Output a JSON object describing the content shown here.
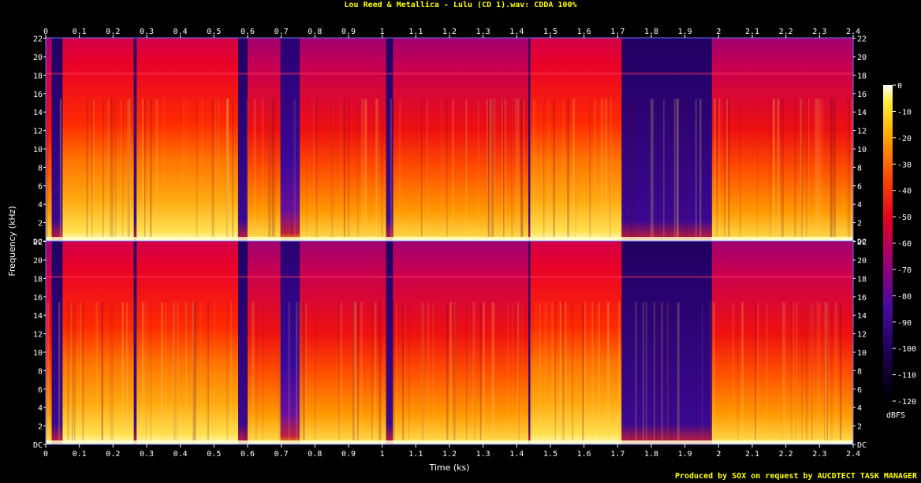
{
  "title": "Lou Reed & Metallica - Lulu (CD 1).wav: CDDA 100%",
  "footer": "Produced by SOX on request by AUCDTECT TASK MANAGER",
  "chart_data": {
    "type": "heatmap",
    "title": "Lou Reed & Metallica - Lulu (CD 1).wav: CDDA 100%",
    "xlabel": "Time (ks)",
    "ylabel": "Frequency (kHz)",
    "x_ticks": [
      "0",
      "0.1",
      "0.2",
      "0.3",
      "0.4",
      "0.5",
      "0.6",
      "0.7",
      "0.8",
      "0.9",
      "1",
      "1.1",
      "1.2",
      "1.3",
      "1.4",
      "1.5",
      "1.6",
      "1.7",
      "1.8",
      "1.9",
      "2",
      "2.1",
      "2.2",
      "2.3",
      "2.4"
    ],
    "x_tick_values": [
      0,
      0.1,
      0.2,
      0.3,
      0.4,
      0.5,
      0.6,
      0.7,
      0.8,
      0.9,
      1.0,
      1.1,
      1.2,
      1.3,
      1.4,
      1.5,
      1.6,
      1.7,
      1.8,
      1.9,
      2.0,
      2.1,
      2.2,
      2.3,
      2.4
    ],
    "xlim": [
      0,
      2.4
    ],
    "y_ticks": [
      "DC",
      "2",
      "4",
      "6",
      "8",
      "10",
      "12",
      "14",
      "16",
      "18",
      "20",
      "22"
    ],
    "y_tick_values": [
      0,
      2,
      4,
      6,
      8,
      10,
      12,
      14,
      16,
      18,
      20,
      22
    ],
    "ylim": [
      0,
      22.05
    ],
    "channels": 2,
    "colorbar": {
      "label": "dBFS",
      "ticks": [
        "0",
        "-10",
        "-20",
        "-30",
        "-40",
        "-50",
        "-60",
        "-70",
        "-80",
        "-90",
        "-100",
        "-110",
        "-120"
      ],
      "tick_values": [
        0,
        -10,
        -20,
        -30,
        -40,
        -50,
        -60,
        -70,
        -80,
        -90,
        -100,
        -110,
        -120
      ],
      "range": [
        -120,
        0
      ]
    },
    "segments": [
      {
        "start": 0.0,
        "end": 0.018,
        "level": 0.62
      },
      {
        "start": 0.018,
        "end": 0.05,
        "level": 0.18
      },
      {
        "start": 0.05,
        "end": 0.262,
        "level": 0.72
      },
      {
        "start": 0.262,
        "end": 0.27,
        "level": 0.15
      },
      {
        "start": 0.27,
        "end": 0.572,
        "level": 0.7
      },
      {
        "start": 0.572,
        "end": 0.6,
        "level": 0.2
      },
      {
        "start": 0.6,
        "end": 0.698,
        "level": 0.66
      },
      {
        "start": 0.698,
        "end": 0.755,
        "level": 0.38
      },
      {
        "start": 0.755,
        "end": 0.99,
        "level": 0.66
      },
      {
        "start": 0.99,
        "end": 1.012,
        "level": 0.55
      },
      {
        "start": 1.012,
        "end": 1.032,
        "level": 0.18
      },
      {
        "start": 1.032,
        "end": 1.435,
        "level": 0.67
      },
      {
        "start": 1.435,
        "end": 1.44,
        "level": 0.15
      },
      {
        "start": 1.44,
        "end": 1.712,
        "level": 0.75
      },
      {
        "start": 1.712,
        "end": 1.98,
        "level": 0.1
      },
      {
        "start": 1.98,
        "end": 2.4,
        "level": 0.62
      }
    ]
  },
  "colors": {
    "background": "#000000",
    "title": "#ffff00",
    "frame": "#7070ff",
    "text": "#ffffff"
  }
}
